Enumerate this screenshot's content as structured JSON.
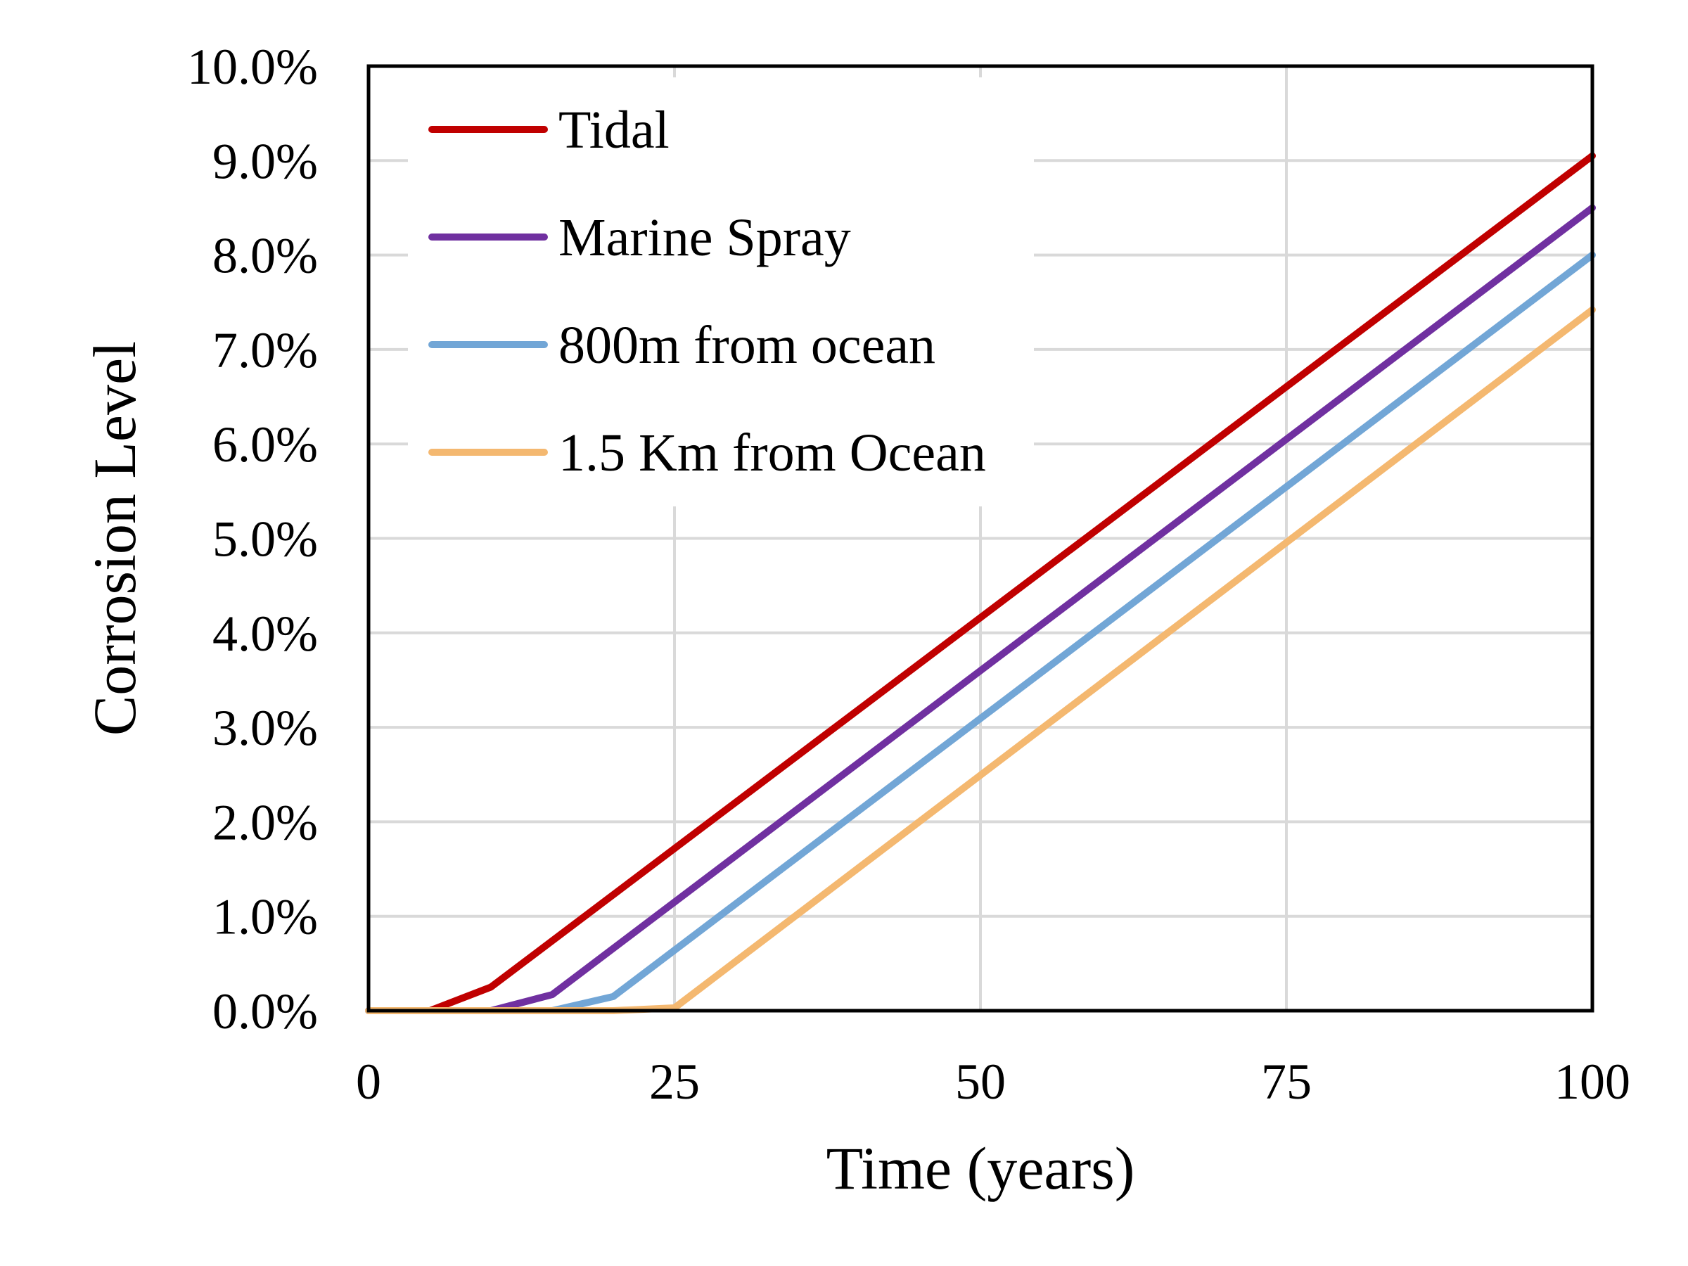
{
  "chart_data": {
    "type": "line",
    "title": "",
    "xlabel": "Time (years)",
    "ylabel": "Corrosion Level",
    "xlim": [
      0,
      100
    ],
    "ylim": [
      0,
      0.1
    ],
    "x_ticks": [
      0,
      25,
      50,
      75,
      100
    ],
    "x_tick_labels": [
      "0",
      "25",
      "50",
      "75",
      "100"
    ],
    "y_ticks": [
      0,
      0.01,
      0.02,
      0.03,
      0.04,
      0.05,
      0.06,
      0.07,
      0.08,
      0.09,
      0.1
    ],
    "y_tick_labels": [
      "0.0%",
      "1.0%",
      "2.0%",
      "3.0%",
      "4.0%",
      "5.0%",
      "6.0%",
      "7.0%",
      "8.0%",
      "9.0%",
      "10.0%"
    ],
    "grid": true,
    "legend_position": "top-left",
    "series": [
      {
        "name": "Tidal",
        "color": "#C00000",
        "x": [
          0,
          5,
          10,
          100
        ],
        "y": [
          0,
          0,
          0.0025,
          0.0905
        ]
      },
      {
        "name": "Marine Spray",
        "color": "#7030A0",
        "x": [
          0,
          10,
          15,
          100
        ],
        "y": [
          0,
          0,
          0.0017,
          0.085
        ]
      },
      {
        "name": "800m from ocean",
        "color": "#72A6D6",
        "x": [
          0,
          15,
          20,
          100
        ],
        "y": [
          0,
          0,
          0.0015,
          0.08
        ]
      },
      {
        "name": "1.5 Km from Ocean",
        "color": "#F4B870",
        "x": [
          0,
          20,
          25,
          100
        ],
        "y": [
          0,
          0,
          0.0003,
          0.0742
        ]
      }
    ]
  }
}
